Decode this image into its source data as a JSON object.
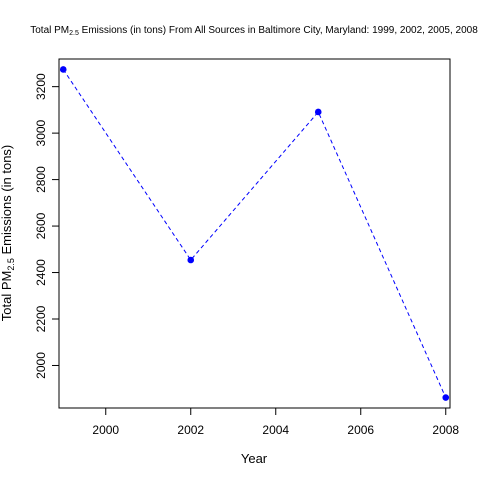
{
  "chart_data": {
    "type": "line",
    "title": {
      "pre": "Total PM",
      "sub": "2.5",
      "post": " Emissions (in tons) From All Sources in Baltimore City, Maryland: 1999, 2002, 2005, 2008"
    },
    "xlabel": "Year",
    "ylabel": {
      "pre": "Total PM",
      "sub": "2.5",
      "post": " Emissions (in tons)"
    },
    "x": [
      1999,
      2002,
      2005,
      2008
    ],
    "series": [
      {
        "values": [
          3274,
          2454,
          3091,
          1862
        ]
      }
    ],
    "xlim": [
      1998.9,
      2008.1
    ],
    "ylim": [
      1817,
      3319
    ],
    "xticks": [
      2000,
      2002,
      2004,
      2006,
      2008
    ],
    "yticks": [
      2000,
      2200,
      2400,
      2600,
      2800,
      3000,
      3200
    ],
    "grid": false,
    "point_color": "#0000ff",
    "line_color": "#0000ff",
    "line_style": "dashed"
  }
}
